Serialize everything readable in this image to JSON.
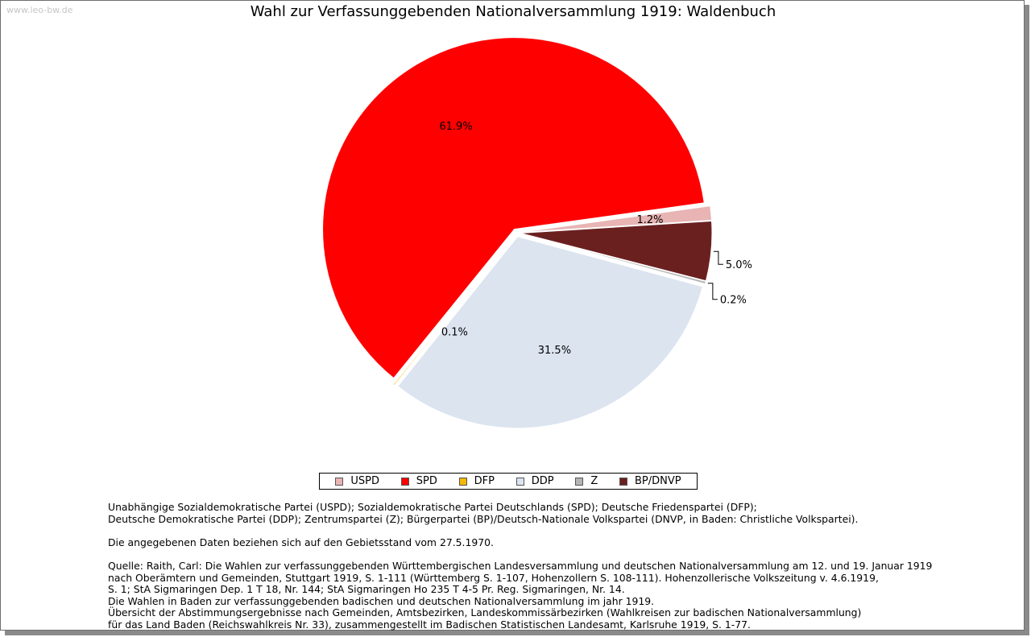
{
  "watermark": "www.leo-bw.de",
  "chart_data": {
    "type": "pie",
    "title": "Wahl zur Verfassunggebenden Nationalversammlung 1919: Waldenbuch",
    "slices": [
      {
        "name": "USPD",
        "value": 1.2,
        "label": "1.2%",
        "color": "#e8b4b4"
      },
      {
        "name": "SPD",
        "value": 61.9,
        "label": "61.9%",
        "color": "#ff0000"
      },
      {
        "name": "DFP",
        "value": 0.1,
        "label": "0.1%",
        "color": "#f5b800"
      },
      {
        "name": "DDP",
        "value": 31.5,
        "label": "31.5%",
        "color": "#dce4f0"
      },
      {
        "name": "Z",
        "value": 0.2,
        "label": "0.2%",
        "color": "#b4b4b4"
      },
      {
        "name": "BP/DNVP",
        "value": 5.0,
        "label": "5.0%",
        "color": "#6b2020"
      }
    ],
    "legend": "bottom"
  },
  "notes": {
    "parties_line1": "Unabhängige Sozialdemokratische Partei (USPD); Sozialdemokratische Partei Deutschlands (SPD); Deutsche Friedenspartei (DFP);",
    "parties_line2": "Deutsche Demokratische Partei (DDP); Zentrumspartei (Z); Bürgerpartei (BP)/Deutsch-Nationale Volkspartei (DNVP, in Baden: Christliche Volkspartei).",
    "territory": "Die angegebenen Daten beziehen sich auf den Gebietsstand vom 27.5.1970.",
    "source_lines": [
      "Quelle: Raith, Carl: Die Wahlen zur verfassunggebenden Württembergischen Landesversammlung und deutschen Nationalversammlung am 12. und 19. Januar 1919",
      "nach Oberämtern und Gemeinden, Stuttgart 1919, S. 1-111 (Württemberg S. 1-107, Hohenzollern S. 108-111). Hohenzollerische Volkszeitung v. 4.6.1919,",
      "S. 1; StA Sigmaringen Dep. 1 T 18, Nr. 144; StA Sigmaringen Ho 235 T 4-5 Pr. Reg. Sigmaringen, Nr. 14.",
      "Die Wahlen in Baden zur verfassunggebenden badischen und deutschen Nationalversammlung im jahr 1919.",
      "Übersicht der Abstimmungsergebnisse nach Gemeinden, Amtsbezirken, Landeskommissärbezirken (Wahlkreisen zur badischen Nationalversammlung)",
      "für das Land Baden (Reichswahlkreis Nr. 33), zusammengestellt im Badischen Statistischen Landesamt, Karlsruhe 1919, S. 1-77."
    ]
  }
}
